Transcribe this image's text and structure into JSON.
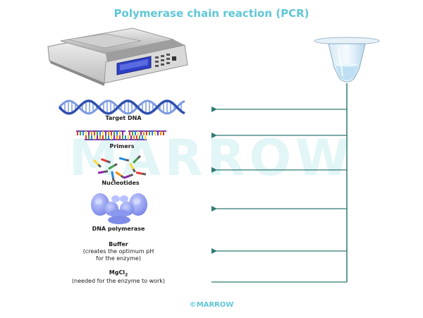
{
  "title": "Polymerase chain reaction (PCR)",
  "watermark": "MARROW",
  "footer": "©MARROW",
  "colors": {
    "title": "#5fc7d6",
    "line": "#2e7a72",
    "watermark": "#e2f5f7",
    "dna_blue": "#2f4fb0",
    "dna_light": "#7c9ae0",
    "tube_blue": "#8fc6e6",
    "enzyme": "#8f9ef0",
    "footer": "#5fc7d6"
  },
  "components": [
    {
      "id": "target-dna",
      "label": "Target DNA",
      "icon": "dna-helix-icon"
    },
    {
      "id": "primers",
      "label": "Primers",
      "icon": "primers-icon"
    },
    {
      "id": "nucleotides",
      "label": "Nucleotides",
      "icon": "nucleotides-icon"
    },
    {
      "id": "dna-polymerase",
      "label": "DNA polymerase",
      "icon": "enzyme-icon"
    },
    {
      "id": "buffer",
      "label": "Buffer",
      "note_line1": "(creates the optimum pH",
      "note_line2": "for the enzyme)"
    },
    {
      "id": "mgcl2",
      "label_main": "MgCl",
      "label_sub": "2",
      "note": "(needed for the enzyme to work)"
    }
  ]
}
